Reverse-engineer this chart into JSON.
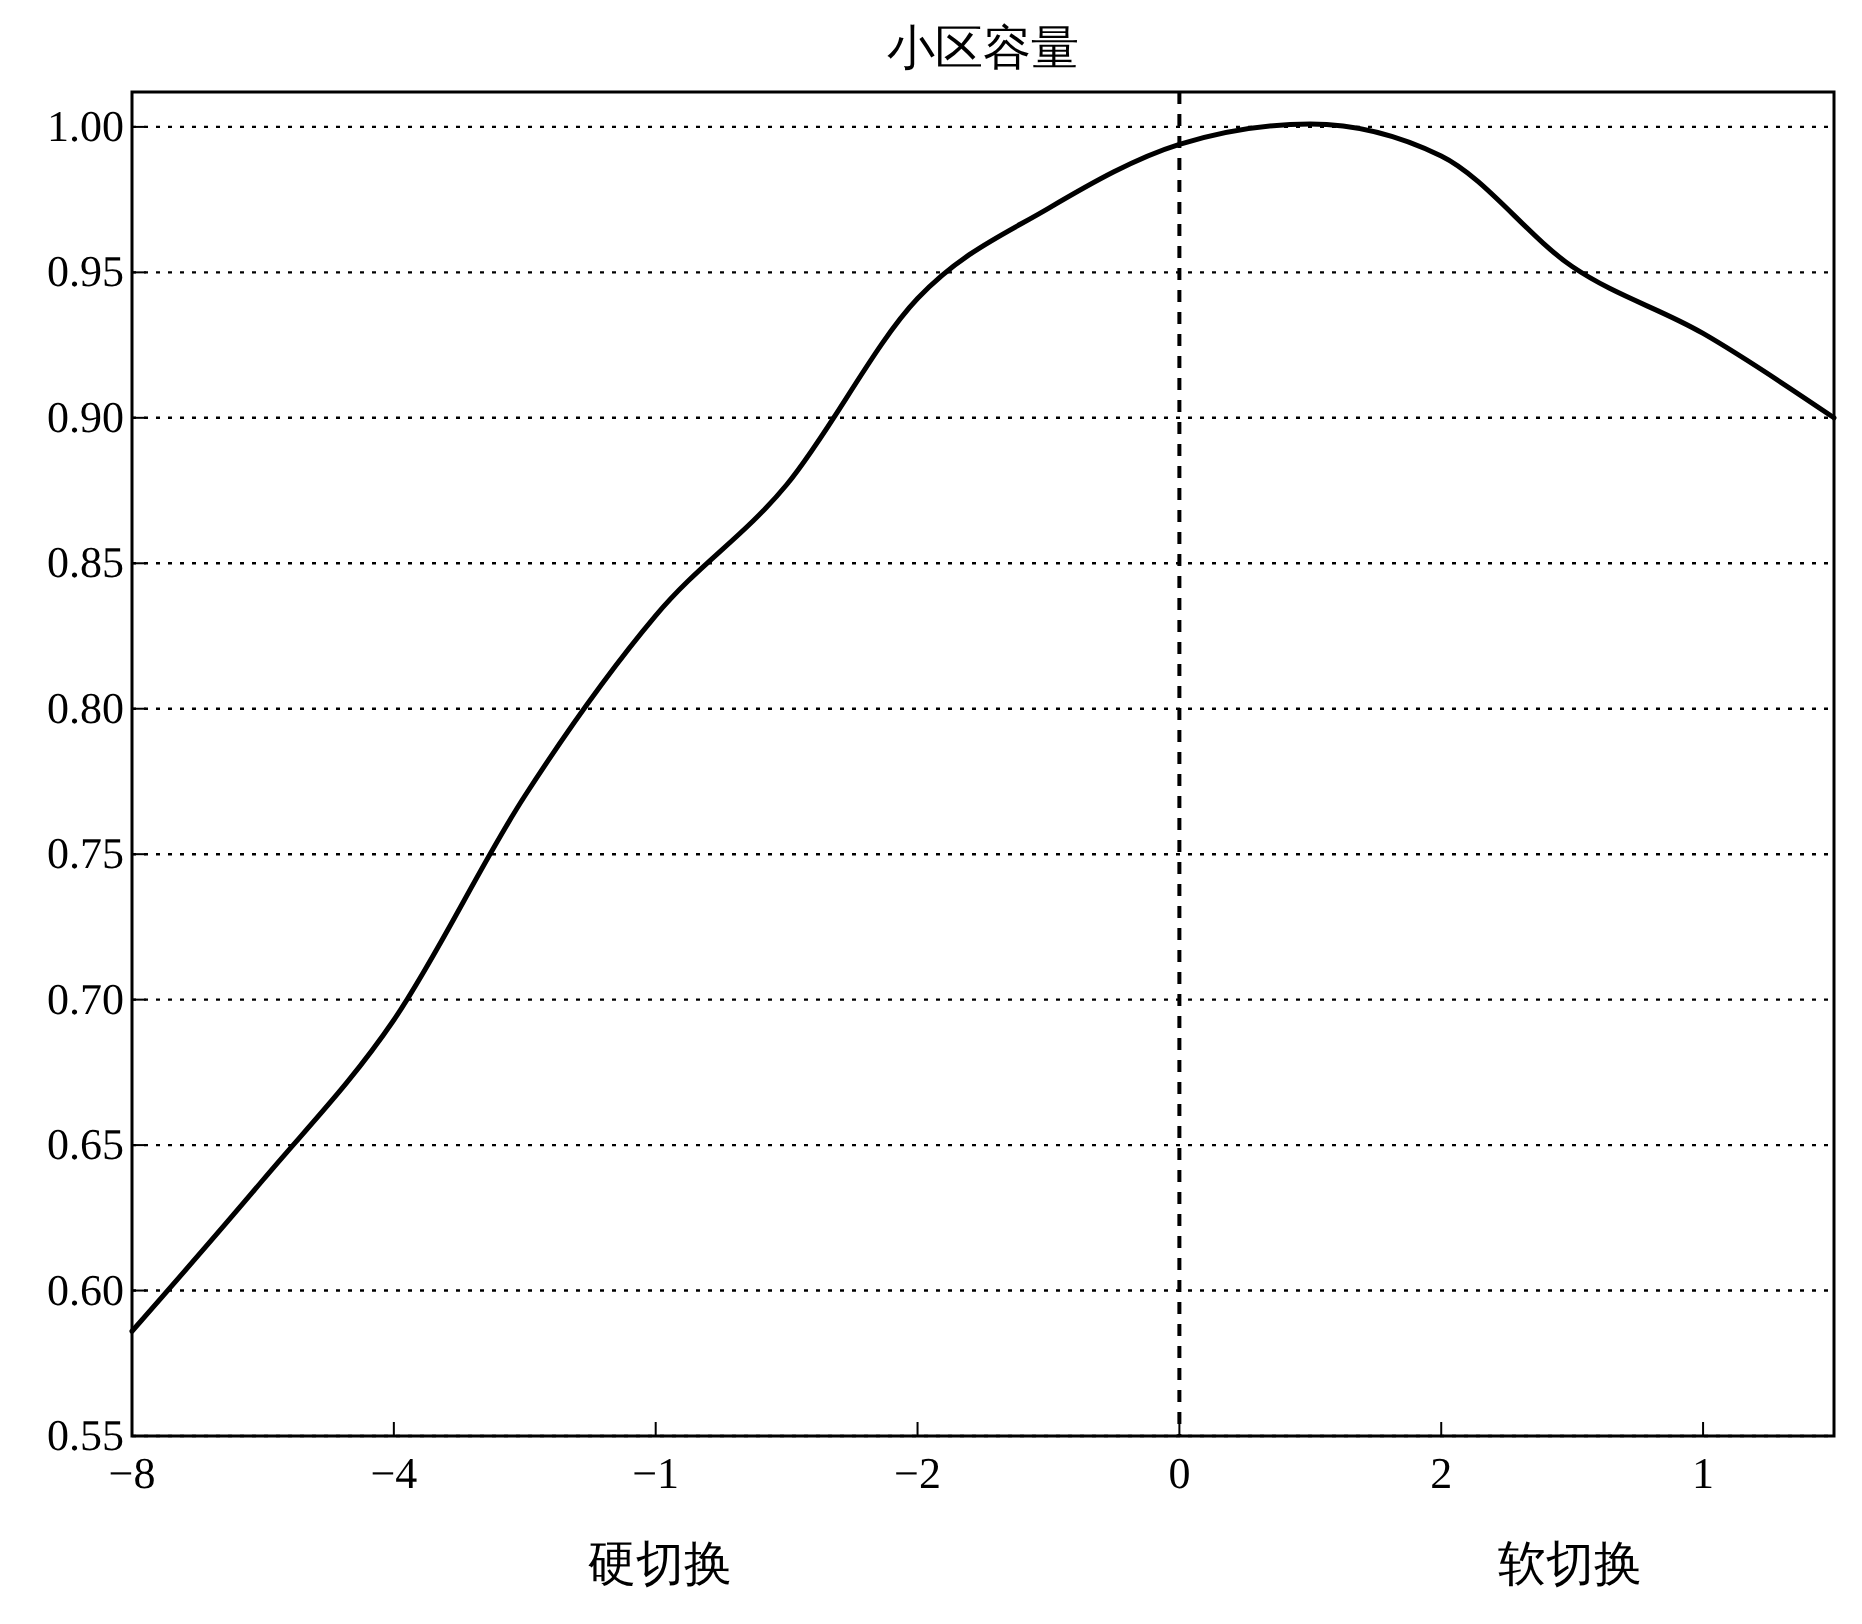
{
  "chart_data": {
    "type": "line",
    "title": "小区容量",
    "categories": [
      "−8",
      null,
      "−4",
      null,
      "−1",
      null,
      "−2",
      null,
      "0",
      null,
      "2",
      null,
      "1",
      null
    ],
    "series": [
      {
        "color": "#000000",
        "values": [
          0.586,
          0.638,
          0.693,
          0.77,
          0.832,
          0.877,
          0.941,
          0.972,
          0.994,
          1.001,
          0.99,
          0.952,
          0.929,
          0.9
        ]
      }
    ],
    "ylim": [
      0.55,
      1.012
    ],
    "yticks": [
      {
        "value": 0.55,
        "label": "0.55"
      },
      {
        "value": 0.6,
        "label": "0.60"
      },
      {
        "value": 0.65,
        "label": "0.65"
      },
      {
        "value": 0.7,
        "label": "0.70"
      },
      {
        "value": 0.75,
        "label": "0.75"
      },
      {
        "value": 0.8,
        "label": "0.80"
      },
      {
        "value": 0.85,
        "label": "0.85"
      },
      {
        "value": 0.9,
        "label": "0.90"
      },
      {
        "value": 0.95,
        "label": "0.95"
      },
      {
        "value": 1.0,
        "label": "1.00"
      }
    ],
    "grid": "y",
    "line_style": "solid",
    "marker": "none",
    "ref_lines": [
      {
        "axis": "x",
        "value": "0",
        "line_style": "dashed"
      }
    ],
    "annotations": [
      "硬切换",
      "软切换"
    ]
  }
}
